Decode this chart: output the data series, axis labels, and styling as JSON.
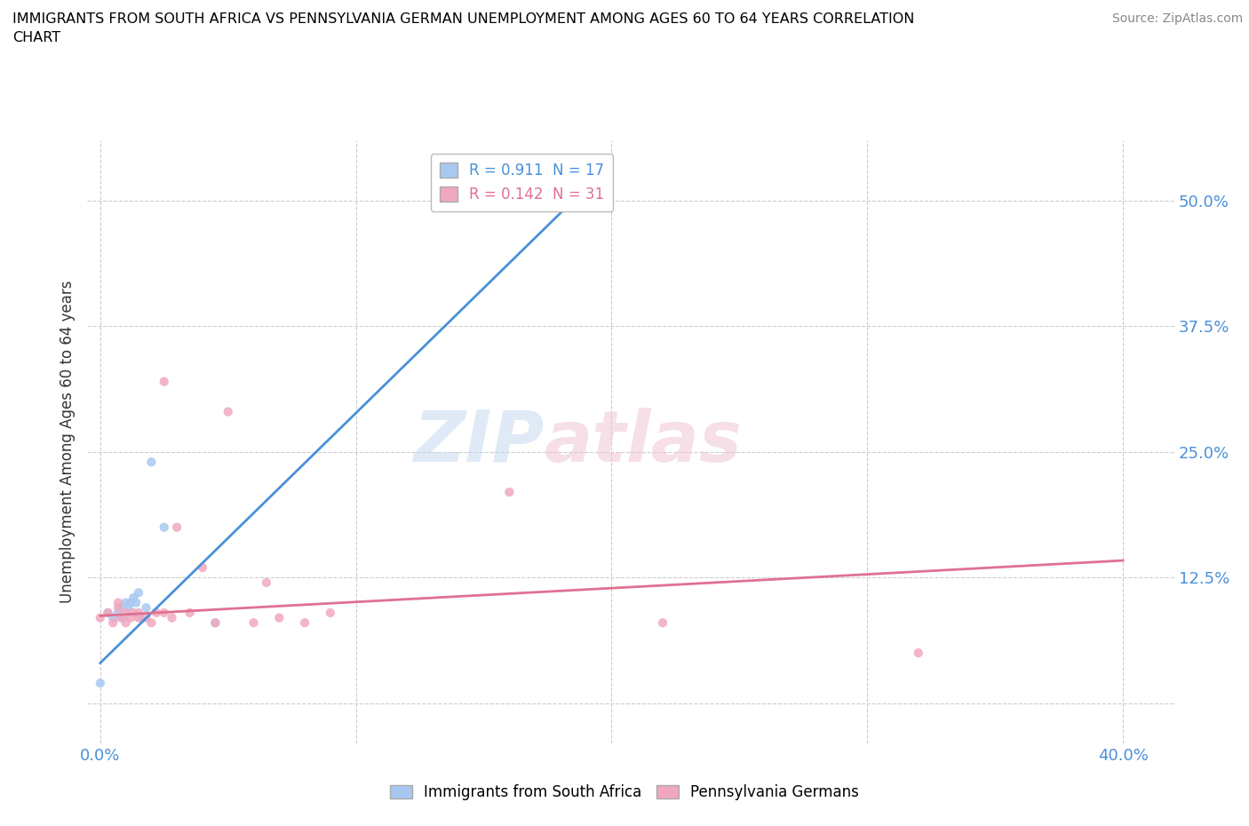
{
  "title": "IMMIGRANTS FROM SOUTH AFRICA VS PENNSYLVANIA GERMAN UNEMPLOYMENT AMONG AGES 60 TO 64 YEARS CORRELATION\nCHART",
  "source": "Source: ZipAtlas.com",
  "ylabel": "Unemployment Among Ages 60 to 64 years",
  "xlim": [
    -0.005,
    0.42
  ],
  "ylim": [
    -0.04,
    0.56
  ],
  "xticks": [
    0.0,
    0.1,
    0.2,
    0.3,
    0.4
  ],
  "xticklabels": [
    "0.0%",
    "",
    "",
    "",
    "40.0%"
  ],
  "yticks": [
    0.0,
    0.125,
    0.25,
    0.375,
    0.5
  ],
  "yticklabels": [
    "",
    "12.5%",
    "25.0%",
    "37.5%",
    "50.0%"
  ],
  "blue_R": 0.911,
  "blue_N": 17,
  "pink_R": 0.142,
  "pink_N": 31,
  "blue_color": "#a8c8f0",
  "pink_color": "#f0a8c0",
  "blue_line_color": "#4a90d9",
  "pink_line_color": "#e07090",
  "grid_color": "#cccccc",
  "watermark_zip": "ZIP",
  "watermark_atlas": "atlas",
  "blue_scatter_x": [
    0.0,
    0.003,
    0.005,
    0.007,
    0.008,
    0.009,
    0.01,
    0.011,
    0.012,
    0.013,
    0.014,
    0.015,
    0.016,
    0.018,
    0.02,
    0.025,
    0.045
  ],
  "blue_scatter_y": [
    0.02,
    0.09,
    0.085,
    0.09,
    0.095,
    0.085,
    0.1,
    0.095,
    0.1,
    0.105,
    0.1,
    0.11,
    0.085,
    0.095,
    0.24,
    0.175,
    0.08
  ],
  "pink_scatter_x": [
    0.0,
    0.003,
    0.005,
    0.007,
    0.007,
    0.008,
    0.01,
    0.01,
    0.012,
    0.013,
    0.015,
    0.015,
    0.018,
    0.02,
    0.022,
    0.025,
    0.025,
    0.028,
    0.03,
    0.035,
    0.04,
    0.045,
    0.05,
    0.06,
    0.065,
    0.07,
    0.08,
    0.09,
    0.16,
    0.22,
    0.32
  ],
  "pink_scatter_y": [
    0.085,
    0.09,
    0.08,
    0.095,
    0.1,
    0.085,
    0.09,
    0.08,
    0.085,
    0.09,
    0.085,
    0.09,
    0.085,
    0.08,
    0.09,
    0.09,
    0.32,
    0.085,
    0.175,
    0.09,
    0.135,
    0.08,
    0.29,
    0.08,
    0.12,
    0.085,
    0.08,
    0.09,
    0.21,
    0.08,
    0.05
  ],
  "blue_trendline_x": [
    0.0,
    0.195
  ],
  "blue_trendline_y": [
    0.04,
    0.525
  ],
  "pink_trendline_x": [
    0.0,
    0.4
  ],
  "pink_trendline_y": [
    0.087,
    0.142
  ]
}
